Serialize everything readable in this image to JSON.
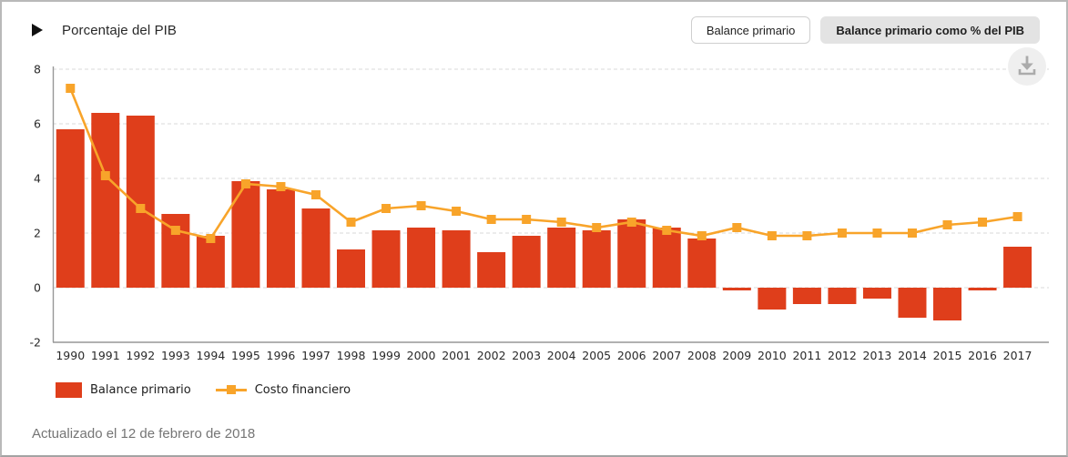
{
  "header": {
    "title": "Porcentaje del PIB",
    "toggle_buttons": [
      {
        "label": "Balance primario",
        "active": false
      },
      {
        "label": "Balance primario como % del PIB",
        "active": true
      }
    ]
  },
  "footer": {
    "updated_text": "Actualizado el 12 de febrero de 2018"
  },
  "chart_data": {
    "type": "bar",
    "title": "Porcentaje del PIB",
    "xlabel": "",
    "ylabel": "",
    "ylim": [
      -2,
      8
    ],
    "yticks": [
      -2,
      0,
      2,
      4,
      6,
      8
    ],
    "grid": "horizontal-dashed",
    "legend_position": "bottom-left",
    "categories": [
      "1990",
      "1991",
      "1992",
      "1993",
      "1994",
      "1995",
      "1996",
      "1997",
      "1998",
      "1999",
      "2000",
      "2001",
      "2002",
      "2003",
      "2004",
      "2005",
      "2006",
      "2007",
      "2008",
      "2009",
      "2010",
      "2011",
      "2012",
      "2013",
      "2014",
      "2015",
      "2016",
      "2017"
    ],
    "series": [
      {
        "name": "Balance primario",
        "type": "bar",
        "color": "#df3e1b",
        "values": [
          5.8,
          6.4,
          6.3,
          2.7,
          1.9,
          3.9,
          3.6,
          2.9,
          1.4,
          2.1,
          2.2,
          2.1,
          1.3,
          1.9,
          2.2,
          2.1,
          2.5,
          2.2,
          1.8,
          -0.1,
          -0.8,
          -0.6,
          -0.6,
          -0.4,
          -1.1,
          -1.2,
          -0.1,
          1.5
        ]
      },
      {
        "name": "Costo financiero",
        "type": "line",
        "color": "#f8a42a",
        "values": [
          7.3,
          4.1,
          2.9,
          2.1,
          1.8,
          3.8,
          3.7,
          3.4,
          2.4,
          2.9,
          3.0,
          2.8,
          2.5,
          2.5,
          2.4,
          2.2,
          2.4,
          2.1,
          1.9,
          2.2,
          1.9,
          1.9,
          2.0,
          2.0,
          2.0,
          2.3,
          2.4,
          2.6
        ]
      }
    ],
    "colors": {
      "grid": "#d9d9d9",
      "axis": "#979797",
      "tick_text": "#2a2a2a",
      "download_circle": "#efefef",
      "download_glyph": "#ababab"
    }
  }
}
